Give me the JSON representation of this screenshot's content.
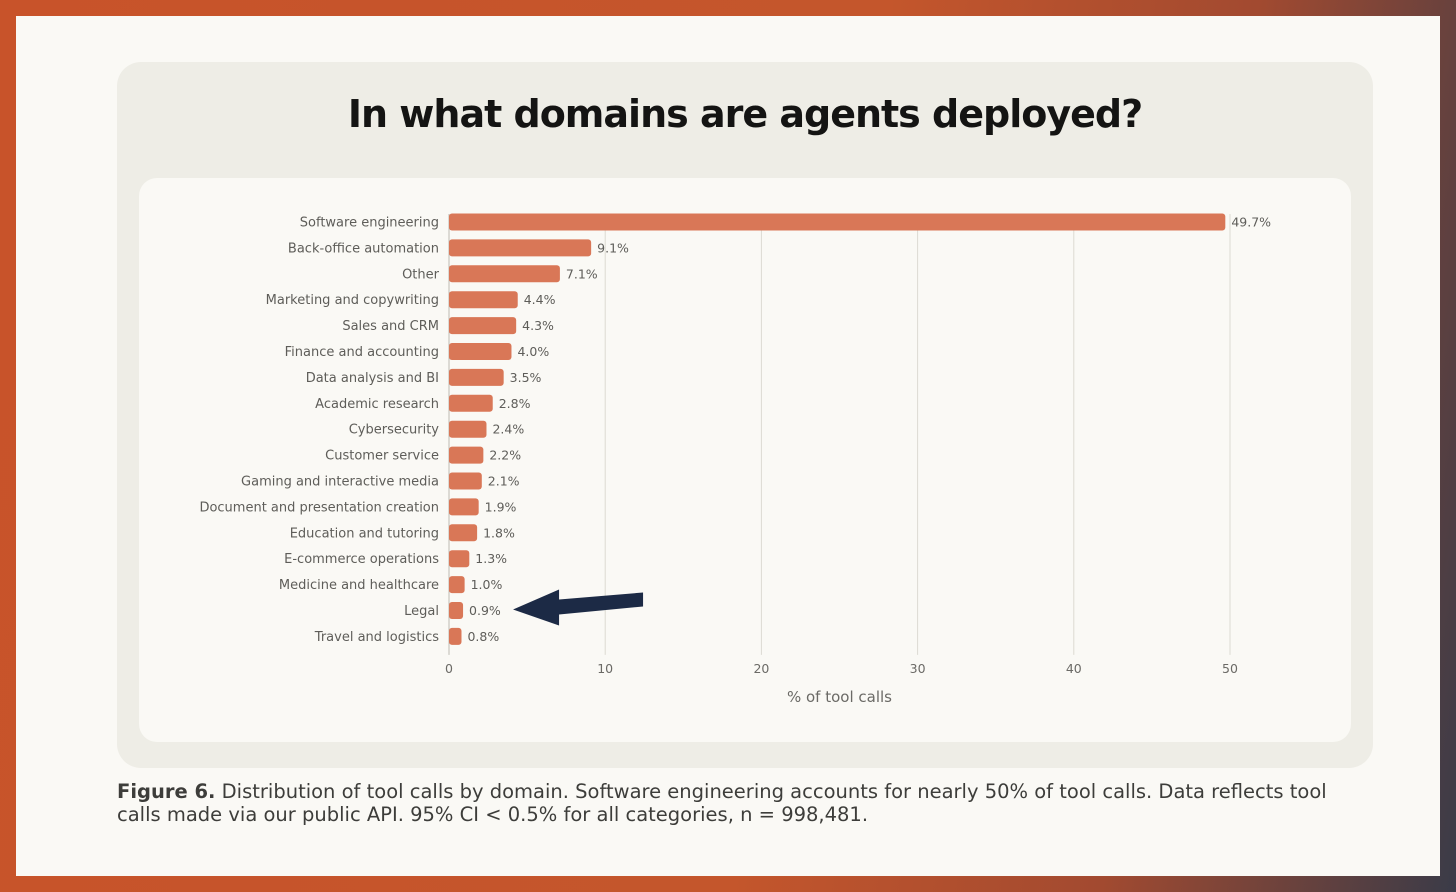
{
  "colors": {
    "bar": "#d97757",
    "arrow": "#1c2a45",
    "label": "#5e5d59",
    "grid": "#dcdad2",
    "axis": "#6b6a66"
  },
  "caption": {
    "figure_label": "Figure 6.",
    "text": "Distribution of tool calls by domain. Software engineering accounts for nearly 50% of tool calls. Data reflects tool calls made via our public API. 95% CI < 0.5% for all categories, n = 998,481."
  },
  "chart_data": {
    "type": "bar",
    "orientation": "horizontal",
    "title": "In what domains are agents deployed?",
    "xlabel": "% of tool calls",
    "ylabel": "",
    "xlim": [
      0,
      50
    ],
    "xticks": [
      0,
      10,
      20,
      30,
      40,
      50
    ],
    "grid": true,
    "categories": [
      "Software engineering",
      "Back-office automation",
      "Other",
      "Marketing and copywriting",
      "Sales and CRM",
      "Finance and accounting",
      "Data analysis and BI",
      "Academic research",
      "Cybersecurity",
      "Customer service",
      "Gaming and interactive media",
      "Document and presentation creation",
      "Education and tutoring",
      "E-commerce operations",
      "Medicine and healthcare",
      "Legal",
      "Travel and logistics"
    ],
    "values": [
      49.7,
      9.1,
      7.1,
      4.4,
      4.3,
      4.0,
      3.5,
      2.8,
      2.4,
      2.2,
      2.1,
      1.9,
      1.8,
      1.3,
      1.0,
      0.9,
      0.8
    ],
    "value_labels": [
      "49.7%",
      "9.1%",
      "7.1%",
      "4.4%",
      "4.3%",
      "4.0%",
      "3.5%",
      "2.8%",
      "2.4%",
      "2.2%",
      "2.1%",
      "1.9%",
      "1.8%",
      "1.3%",
      "1.0%",
      "0.9%",
      "0.8%"
    ],
    "annotation": {
      "type": "arrow",
      "target_category": "Legal"
    }
  }
}
